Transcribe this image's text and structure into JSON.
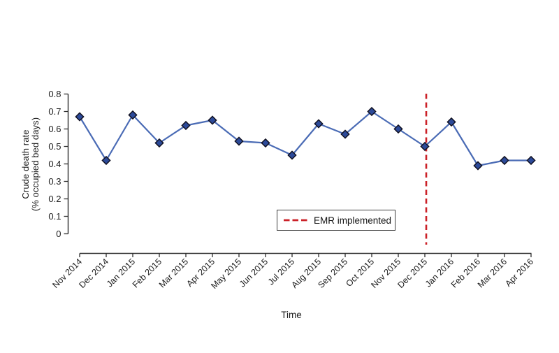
{
  "colors": {
    "line": "#4a6bb5",
    "marker_fill": "#2c4a99",
    "marker_stroke": "#101020",
    "vline_red": "#cb2128",
    "axis": "#2e2e2e",
    "text": "#1c1c1c"
  },
  "chart_data": {
    "type": "line",
    "title": "",
    "xlabel": "Time",
    "ylabel_lines": [
      "Crude death rate",
      "(% occupied bed days)"
    ],
    "categories": [
      "Nov 2014",
      "Dec 2014",
      "Jan 2015",
      "Feb 2015",
      "Mar 2015",
      "Apr 2015",
      "May 2015",
      "Jun 2015",
      "Jul 2015",
      "Aug 2015",
      "Sep 2015",
      "Oct 2015",
      "Nov 2015",
      "Dec 2015",
      "Jan 2016",
      "Feb 2016",
      "Mar 2016",
      "Apr 2016"
    ],
    "series": [
      {
        "name": "Crude death rate",
        "values": [
          0.67,
          0.42,
          0.68,
          0.52,
          0.62,
          0.65,
          0.53,
          0.52,
          0.45,
          0.63,
          0.57,
          0.7,
          0.6,
          0.5,
          0.64,
          0.39,
          0.42,
          0.42
        ]
      }
    ],
    "ylim": [
      0,
      0.8
    ],
    "yticks": [
      0,
      0.1,
      0.2,
      0.3,
      0.4,
      0.5,
      0.6,
      0.7,
      0.8
    ],
    "ytick_labels": [
      "0",
      "0.1",
      "0.2",
      "0.3",
      "0.4",
      "0.5",
      "0.6",
      "0.7",
      "0.8"
    ],
    "grid": false,
    "marker": "diamond",
    "legend": {
      "label": "EMR implemented",
      "position": "bottom-center"
    },
    "vline": {
      "at": "Dec 2015",
      "label": "EMR implemented",
      "style": "dashed"
    }
  }
}
